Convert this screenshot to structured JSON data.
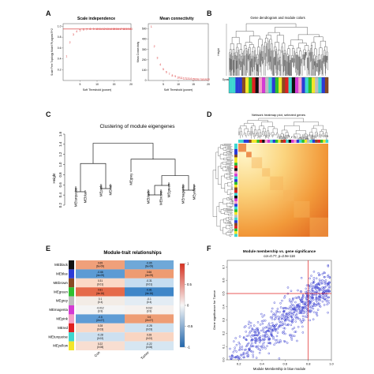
{
  "panels": {
    "A": {
      "label": "A",
      "left": {
        "title": "Scale independence",
        "xlabel": "Soft Threshold (power)",
        "ylabel": "Scale Free Topology Model Fit,signed R^2",
        "xticks": [
          "5",
          "10",
          "15",
          "20"
        ],
        "yticks": [
          "0.2",
          "0.4",
          "0.6",
          "0.8",
          "1.0"
        ]
      },
      "right": {
        "title": "Mean connectivity",
        "xlabel": "Soft Threshold (power)",
        "ylabel": "Mean Connectivity",
        "xticks": [
          "5",
          "10",
          "15",
          "20"
        ],
        "yticks": [
          "0",
          "100",
          "200",
          "300",
          "400",
          "500"
        ]
      }
    },
    "B": {
      "label": "B",
      "title": "Gene dendrogram and module colors",
      "ylabel": "Height",
      "bar_label": "Dynamic Tree Cut"
    },
    "C": {
      "label": "C",
      "title": "Clustering of module eigengenes",
      "ylabel": "Height",
      "yticks": [
        "0.2",
        "0.4",
        "0.6",
        "0.8",
        "1.0",
        "1.2",
        "1.4",
        "1.6"
      ],
      "leaves": [
        "MEturquoise",
        "MEblue",
        "MEpink",
        "MEred",
        "MEgrey",
        "MEblack",
        "MEbrown",
        "MEgreen",
        "MEmagenta",
        "MEyellow"
      ]
    },
    "D": {
      "label": "D",
      "title": "Network heatmap plot, selected genes"
    },
    "E": {
      "label": "E",
      "title": "Module-trait relationships",
      "columns": [
        "Con",
        "Tumor"
      ],
      "legend_ticks": [
        "1",
        "0.5",
        "0",
        "-0.5",
        "-1"
      ],
      "rows": [
        {
          "name": "MEblack",
          "swatch": "#111111",
          "cells": [
            {
              "text": "0.65\n(6e-09)",
              "color": "#f0a07a"
            },
            {
              "text": "-0.65\n(6e-09)",
              "color": "#6fa8d8"
            }
          ]
        },
        {
          "name": "MEblue",
          "swatch": "#2b3bd6",
          "cells": [
            {
              "text": "-0.66\n(4e-09)",
              "color": "#5c9bd4"
            },
            {
              "text": "0.66\n(4e-09)",
              "color": "#ee9b72"
            }
          ]
        },
        {
          "name": "MEbrown",
          "swatch": "#8a4a22",
          "cells": [
            {
              "text": "0.31\n(0.01)",
              "color": "#fbd9c6"
            },
            {
              "text": "-0.31\n(0.01)",
              "color": "#c6ddf0"
            }
          ]
        },
        {
          "name": "MEgreen",
          "swatch": "#2fbf2f",
          "cells": [
            {
              "text": "0.81\n(4e-16)",
              "color": "#e56a4a"
            },
            {
              "text": "-0.81\n(4e-16)",
              "color": "#3f86c8"
            }
          ]
        },
        {
          "name": "MEgrey",
          "swatch": "#bdbdbd",
          "cells": [
            {
              "text": "0.1\n(0.4)",
              "color": "#f3ece6"
            },
            {
              "text": "-0.1\n(0.4)",
              "color": "#e3ecf4"
            }
          ]
        },
        {
          "name": "MEmagenta",
          "swatch": "#d43ad4",
          "cells": [
            {
              "text": "-0.012\n(0.9)",
              "color": "#f4f4f4"
            },
            {
              "text": "0.012\n(0.9)",
              "color": "#f6f1ee"
            }
          ]
        },
        {
          "name": "MEpink",
          "swatch": "#f5a0c8",
          "cells": [
            {
              "text": "-0.6\n(2e-07)",
              "color": "#5f9cd5"
            },
            {
              "text": "0.6\n(2e-07)",
              "color": "#ee9d75"
            }
          ]
        },
        {
          "name": "MEred",
          "swatch": "#e02020",
          "cells": [
            {
              "text": "0.28\n(0.03)",
              "color": "#fad8c6"
            },
            {
              "text": "-0.28\n(0.03)",
              "color": "#cfe2f1"
            }
          ]
        },
        {
          "name": "MEturquoise",
          "swatch": "#3ed6d0",
          "cells": [
            {
              "text": "-0.28\n(0.02)",
              "color": "#cde0f0"
            },
            {
              "text": "0.28\n(0.02)",
              "color": "#f9d5c2"
            }
          ]
        },
        {
          "name": "MEyellow",
          "swatch": "#f2e52a",
          "cells": [
            {
              "text": "0.22\n(0.08)",
              "color": "#f8ded1"
            },
            {
              "text": "-0.22\n(0.08)",
              "color": "#d6e6f2"
            }
          ]
        }
      ]
    },
    "F": {
      "label": "F",
      "title": "Module membership vs. gene significance",
      "subtitle": "cor=0.77, p=2.9e-116",
      "xlabel": "Module Membership in blue module",
      "ylabel": "Gene significance for Tumor",
      "xticks": [
        "0.2",
        "0.4",
        "0.6",
        "0.8",
        "1.0"
      ],
      "yticks": [
        "0.0",
        "0.1",
        "0.2",
        "0.3",
        "0.4",
        "0.5",
        "0.6",
        "0.7"
      ]
    }
  },
  "chart_data": [
    {
      "type": "scatter",
      "title": "Scale independence",
      "xlabel": "Soft Threshold (power)",
      "ylabel": "Scale Free Topology Model Fit,signed R^2",
      "xlim": [
        0,
        20
      ],
      "ylim": [
        0,
        1.05
      ],
      "x": [
        1,
        2,
        3,
        4,
        5,
        6,
        7,
        8,
        9,
        10,
        11,
        12,
        13,
        14,
        15,
        16,
        17,
        18,
        19,
        20
      ],
      "y": [
        0.45,
        0.7,
        0.85,
        0.91,
        0.93,
        0.94,
        0.94,
        0.95,
        0.95,
        0.95,
        0.95,
        0.95,
        0.95,
        0.95,
        0.95,
        0.95,
        0.95,
        0.95,
        0.95,
        0.95
      ],
      "hline": 0.95,
      "point_color": "#d62728"
    },
    {
      "type": "scatter",
      "title": "Mean connectivity",
      "xlabel": "Soft Threshold (power)",
      "ylabel": "Mean Connectivity",
      "xlim": [
        0,
        20
      ],
      "ylim": [
        0,
        550
      ],
      "x": [
        1,
        2,
        3,
        4,
        5,
        6,
        7,
        8,
        9,
        10,
        11,
        12,
        13,
        14,
        15,
        16,
        17,
        18,
        19,
        20
      ],
      "y": [
        520,
        330,
        220,
        155,
        110,
        82,
        62,
        48,
        38,
        30,
        25,
        21,
        18,
        16,
        14,
        12,
        11,
        10,
        9,
        8
      ],
      "point_color": "#d62728"
    },
    {
      "type": "scatter",
      "title": "Module membership vs. gene significance",
      "subtitle": "cor=0.77, p=2.9e-116",
      "xlabel": "Module Membership in blue module",
      "ylabel": "Gene significance for Tumor",
      "xlim": [
        0.1,
        1.0
      ],
      "ylim": [
        0.0,
        0.75
      ],
      "trend": {
        "slope": 0.62,
        "intercept": -0.06
      },
      "vline": 0.8,
      "hline": 0.5,
      "n_points": 700,
      "point_color": "#3a3fd0"
    }
  ]
}
